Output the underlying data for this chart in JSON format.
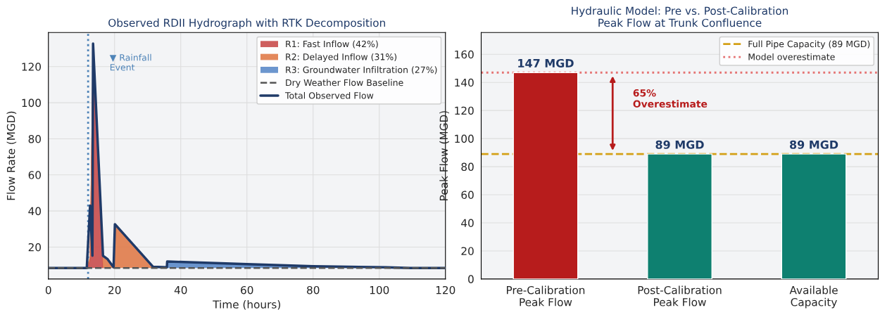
{
  "chart_data": [
    {
      "type": "area",
      "title": "Observed RDII Hydrograph with RTK Decomposition",
      "xlabel": "Time (hours)",
      "ylabel": "Flow Rate (MGD)",
      "x": [
        0,
        11.6,
        12.6,
        13.3,
        13.5,
        16.5,
        17.9,
        19.7,
        20.1,
        31.6,
        35.8,
        35.9,
        60,
        80,
        102,
        109.4,
        120
      ],
      "series": [
        {
          "name": "R1: Fast Inflow (42%)",
          "color": "#c94c4c",
          "values": [
            null,
            8.4,
            12.4,
            101.4,
            127.4,
            8.4,
            null,
            null,
            null,
            null,
            null,
            null,
            null,
            null,
            null,
            null,
            null
          ]
        },
        {
          "name": "R2: Delayed Inflow (31%)",
          "color": "#e07b4a",
          "values": [
            null,
            8.4,
            14.4,
            106,
            132.4,
            15.2,
            13.3,
            8.8,
            32.7,
            9.1,
            null,
            null,
            null,
            null,
            null,
            null,
            null
          ]
        },
        {
          "name": "R3: Groundwater Infiltration (27%)",
          "color": "#5b8ac9",
          "values": [
            null,
            null,
            null,
            null,
            null,
            null,
            null,
            null,
            null,
            null,
            8.4,
            12,
            10.5,
            9.4,
            8.8,
            8.4,
            8.4
          ]
        },
        {
          "name": "Dry Weather Flow Baseline",
          "type": "line",
          "line_style": "dashed",
          "color": "#555555",
          "x": [
            0,
            120
          ],
          "values": [
            8.4,
            8.4
          ]
        },
        {
          "name": "Total Observed Flow",
          "type": "line",
          "line_style": "solid",
          "color": "#1f3a68",
          "values": [
            8.4,
            8.4,
            43,
            15.2,
            132.8,
            15.2,
            13.3,
            8.8,
            32.7,
            9.1,
            8.8,
            12,
            10.5,
            9.4,
            8.8,
            8.4,
            8.4
          ]
        }
      ],
      "ref_lines": [
        {
          "axis": "x",
          "value": 12,
          "label": "▼ Rainfall\nEvent",
          "color": "#4f84b8",
          "line_style": "dotted"
        }
      ],
      "xlim": [
        0,
        120
      ],
      "xticks": [
        0,
        20,
        40,
        60,
        80,
        100,
        120
      ],
      "ylim": [
        2.3,
        138.9
      ],
      "yticks": [
        20,
        40,
        60,
        80,
        100,
        120
      ],
      "grid": true,
      "legend": "top right"
    },
    {
      "type": "bar",
      "title": "Hydraulic Model: Pre vs. Post-Calibration\nPeak Flow at Trunk Confluence",
      "ylabel": "Peak Flow (MGD)",
      "categories": [
        "Pre-Calibration\nPeak Flow",
        "Post-Calibration\nPeak Flow",
        "Available\nCapacity"
      ],
      "values": [
        147,
        89,
        89
      ],
      "colors": [
        "#b71c1c",
        "#0e8070",
        "#0e8070"
      ],
      "value_labels": [
        "147 MGD",
        "89 MGD",
        "89 MGD"
      ],
      "ref_lines": [
        {
          "axis": "y",
          "value": 89,
          "label": "Full Pipe Capacity (89 MGD)",
          "color": "#d4a017",
          "line_style": "dashed"
        },
        {
          "axis": "y",
          "value": 147,
          "label": "Model overestimate",
          "color": "#e57373",
          "line_style": "dotted"
        }
      ],
      "annotations": [
        "65%\nOverestimate"
      ],
      "ylim": [
        0,
        175.5
      ],
      "yticks": [
        0,
        20,
        40,
        60,
        80,
        100,
        120,
        140,
        160
      ],
      "grid": "y",
      "legend": "top right"
    }
  ]
}
